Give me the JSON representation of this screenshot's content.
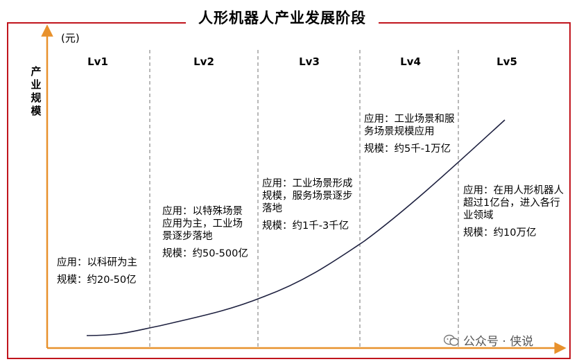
{
  "title": "人形机器人产业发展阶段",
  "unit": "(元)",
  "y_axis_label": "产业规模",
  "levels": [
    "Lv1",
    "Lv2",
    "Lv3",
    "Lv4",
    "Lv5"
  ],
  "stages": [
    {
      "app": "应用：以科研为主",
      "scale": "规模：约20-50亿"
    },
    {
      "app": "应用：以特殊场景应用为主，工业场景逐步落地",
      "scale": "规模：约50-500亿"
    },
    {
      "app": "应用：工业场景形成规模，服务场景逐步落地",
      "scale": "规模：约1千-3千亿"
    },
    {
      "app": "应用：工业场景和服务场景规模应用",
      "scale": "规模：约5千-1万亿"
    },
    {
      "app": "应用：在用人形机器人超过1亿台，进入各行业领域",
      "scale": "规模：约10万亿"
    }
  ],
  "watermark": "公众号 · 侠说",
  "colors": {
    "frame": "#c0141c",
    "axis": "#e8912c",
    "curve": "#1e2140",
    "divider": "#888888"
  }
}
